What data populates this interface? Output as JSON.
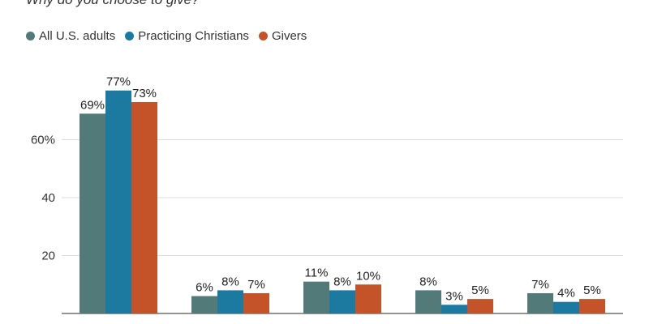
{
  "title": "Why do you choose to give?",
  "legend": [
    {
      "label": "All U.S. adults",
      "color": "#517a78"
    },
    {
      "label": "Practicing Christians",
      "color": "#1c7aa0"
    },
    {
      "label": "Givers",
      "color": "#c4532a"
    }
  ],
  "chart_data": {
    "type": "bar",
    "title": "Why do you choose to give?",
    "categories": [
      "",
      "",
      "",
      "",
      ""
    ],
    "series": [
      {
        "name": "All U.S. adults",
        "color": "#517a78",
        "values": [
          69,
          6,
          11,
          8,
          7
        ],
        "labels": [
          "69%",
          "6%",
          "11%",
          "8%",
          "7%"
        ]
      },
      {
        "name": "Practicing Christians",
        "color": "#1c7aa0",
        "values": [
          77,
          8,
          8,
          3,
          4
        ],
        "labels": [
          "77%",
          "8%",
          "8%",
          "3%",
          "4%"
        ]
      },
      {
        "name": "Givers",
        "color": "#c4532a",
        "values": [
          73,
          7,
          10,
          5,
          5
        ],
        "labels": [
          "73%",
          "7%",
          "10%",
          "5%",
          "5%"
        ]
      }
    ],
    "yticks": [
      {
        "value": 20,
        "label": "20"
      },
      {
        "value": 40,
        "label": "40"
      },
      {
        "value": 60,
        "label": "60%"
      }
    ],
    "ylim": [
      0,
      80
    ],
    "grid": true,
    "legend_position": "top-left"
  }
}
